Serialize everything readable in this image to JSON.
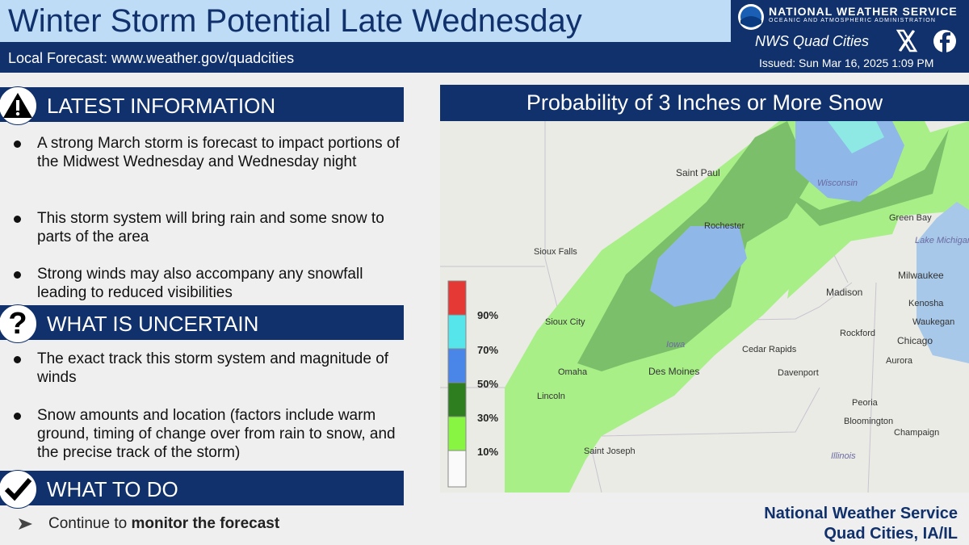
{
  "header": {
    "title": "Winter Storm Potential Late Wednesday",
    "local_forecast": "Local Forecast: www.weather.gov/quadcities",
    "agency": "NATIONAL WEATHER SERVICE",
    "agency_sub": "OCEANIC AND ATMOSPHERIC ADMINISTRATION",
    "office": "NWS Quad Cities",
    "issued": "Issued: Sun Mar 16, 2025 1:09 PM"
  },
  "sections": [
    {
      "heading": "LATEST INFORMATION",
      "bullets": [
        "A strong March storm is forecast to impact portions of the Midwest Wednesday and Wednesday night",
        "This storm system will bring rain and some snow to parts of the area",
        "Strong winds may also accompany any snowfall leading to reduced visibilities"
      ]
    },
    {
      "heading": "WHAT IS UNCERTAIN",
      "icon": "?",
      "bullets": [
        "The exact track this storm system and magnitude of winds",
        "Snow amounts and location (factors include warm ground, timing of change over from rain to snow, and the precise track of the storm)"
      ]
    },
    {
      "heading": "WHAT TO DO",
      "action": {
        "prefix": "Continue to",
        "bold": "monitor the forecast"
      }
    }
  ],
  "map": {
    "title": "Probability of 3 Inches or More Snow",
    "legend": [
      "90%",
      "70%",
      "50%",
      "30%",
      "10%"
    ],
    "places": [
      "Saint Paul",
      "Rochester",
      "Sioux Falls",
      "Sioux City",
      "Omaha",
      "Lincoln",
      "Des Moines",
      "Iowa",
      "Cedar Rapids",
      "Davenport",
      "Rockford",
      "Madison",
      "Milwaukee",
      "Kenosha",
      "Waukegan",
      "Chicago",
      "Aurora",
      "Peoria",
      "Bloomington",
      "Champaign",
      "Saint Joseph",
      "Green Bay",
      "Wisconsin",
      "Lake Michigan",
      "Illinois"
    ]
  },
  "footer": {
    "line1": "National Weather Service",
    "line2": "Quad Cities, IA/IL"
  }
}
